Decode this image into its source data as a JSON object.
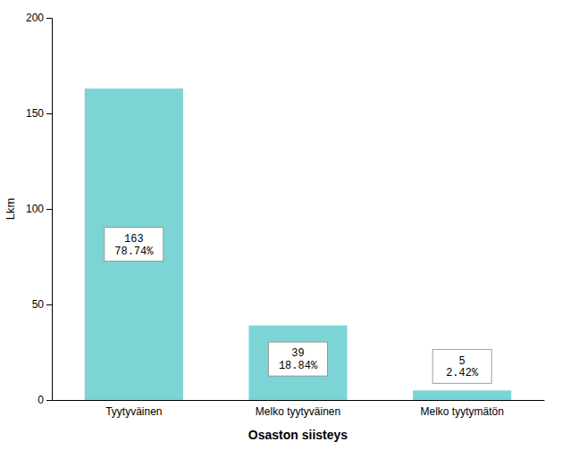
{
  "chart_data": {
    "type": "bar",
    "xlabel": "Osaston siisteys",
    "ylabel": "Lkm",
    "categories": [
      "Tyytyväinen",
      "Melko tyytyväinen",
      "Melko tyytymätön"
    ],
    "values": [
      163,
      39,
      5
    ],
    "percentages": [
      "78.74%",
      "18.84%",
      "2.42%"
    ],
    "color": "#7DD4D4",
    "ylim": [
      0,
      200
    ],
    "yticks": [
      0,
      50,
      100,
      150,
      200
    ],
    "grid": false,
    "data_labels": true
  }
}
